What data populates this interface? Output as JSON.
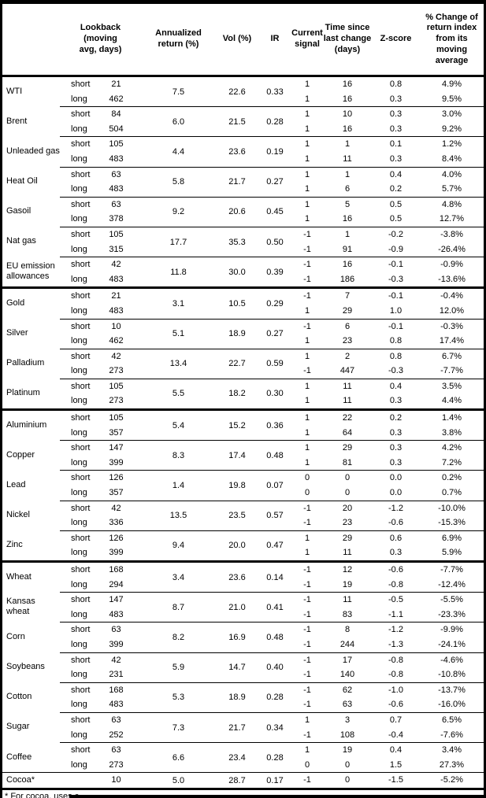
{
  "colors": {
    "text": "#000000",
    "background": "#ffffff",
    "rule": "#000000"
  },
  "header": {
    "lookback": "Lookback\n(moving\navg, days)",
    "annualized": "Annualized\nreturn (%)",
    "vol": "Vol (%)",
    "ir": "IR",
    "signal": "Current\nsignal",
    "time": "Time since\nlast change\n(days)",
    "zscore": "Z-score",
    "pct": "% Change of\nreturn index\nfrom its\nmoving\naverage"
  },
  "footnote": "* For cocoa, uses c",
  "sections": [
    {
      "commodities": [
        {
          "name": "WTI",
          "annualized": "7.5",
          "vol": "22.6",
          "ir": "0.33",
          "legs": [
            {
              "horizon": "short",
              "lookback": "21",
              "signal": "1",
              "time": "16",
              "zscore": "0.8",
              "pct": "4.9%"
            },
            {
              "horizon": "long",
              "lookback": "462",
              "signal": "1",
              "time": "16",
              "zscore": "0.3",
              "pct": "9.5%"
            }
          ]
        },
        {
          "name": "Brent",
          "annualized": "6.0",
          "vol": "21.5",
          "ir": "0.28",
          "legs": [
            {
              "horizon": "short",
              "lookback": "84",
              "signal": "1",
              "time": "10",
              "zscore": "0.3",
              "pct": "3.0%"
            },
            {
              "horizon": "long",
              "lookback": "504",
              "signal": "1",
              "time": "16",
              "zscore": "0.3",
              "pct": "9.2%"
            }
          ]
        },
        {
          "name": "Unleaded gas",
          "annualized": "4.4",
          "vol": "23.6",
          "ir": "0.19",
          "legs": [
            {
              "horizon": "short",
              "lookback": "105",
              "signal": "1",
              "time": "1",
              "zscore": "0.1",
              "pct": "1.2%"
            },
            {
              "horizon": "long",
              "lookback": "483",
              "signal": "1",
              "time": "11",
              "zscore": "0.3",
              "pct": "8.4%"
            }
          ]
        },
        {
          "name": "Heat Oil",
          "annualized": "5.8",
          "vol": "21.7",
          "ir": "0.27",
          "legs": [
            {
              "horizon": "short",
              "lookback": "63",
              "signal": "1",
              "time": "1",
              "zscore": "0.4",
              "pct": "4.0%"
            },
            {
              "horizon": "long",
              "lookback": "483",
              "signal": "1",
              "time": "6",
              "zscore": "0.2",
              "pct": "5.7%"
            }
          ]
        },
        {
          "name": "Gasoil",
          "annualized": "9.2",
          "vol": "20.6",
          "ir": "0.45",
          "legs": [
            {
              "horizon": "short",
              "lookback": "63",
              "signal": "1",
              "time": "5",
              "zscore": "0.5",
              "pct": "4.8%"
            },
            {
              "horizon": "long",
              "lookback": "378",
              "signal": "1",
              "time": "16",
              "zscore": "0.5",
              "pct": "12.7%"
            }
          ]
        },
        {
          "name": "Nat gas",
          "annualized": "17.7",
          "vol": "35.3",
          "ir": "0.50",
          "legs": [
            {
              "horizon": "short",
              "lookback": "105",
              "signal": "-1",
              "time": "1",
              "zscore": "-0.2",
              "pct": "-3.8%"
            },
            {
              "horizon": "long",
              "lookback": "315",
              "signal": "-1",
              "time": "91",
              "zscore": "-0.9",
              "pct": "-26.4%"
            }
          ]
        },
        {
          "name": "EU emission allowances",
          "annualized": "11.8",
          "vol": "30.0",
          "ir": "0.39",
          "legs": [
            {
              "horizon": "short",
              "lookback": "42",
              "signal": "-1",
              "time": "16",
              "zscore": "-0.1",
              "pct": "-0.9%"
            },
            {
              "horizon": "long",
              "lookback": "483",
              "signal": "-1",
              "time": "186",
              "zscore": "-0.3",
              "pct": "-13.6%"
            }
          ]
        }
      ]
    },
    {
      "commodities": [
        {
          "name": "Gold",
          "annualized": "3.1",
          "vol": "10.5",
          "ir": "0.29",
          "legs": [
            {
              "horizon": "short",
              "lookback": "21",
              "signal": "-1",
              "time": "7",
              "zscore": "-0.1",
              "pct": "-0.4%"
            },
            {
              "horizon": "long",
              "lookback": "483",
              "signal": "1",
              "time": "29",
              "zscore": "1.0",
              "pct": "12.0%"
            }
          ]
        },
        {
          "name": "Silver",
          "annualized": "5.1",
          "vol": "18.9",
          "ir": "0.27",
          "legs": [
            {
              "horizon": "short",
              "lookback": "10",
              "signal": "-1",
              "time": "6",
              "zscore": "-0.1",
              "pct": "-0.3%"
            },
            {
              "horizon": "long",
              "lookback": "462",
              "signal": "1",
              "time": "23",
              "zscore": "0.8",
              "pct": "17.4%"
            }
          ]
        },
        {
          "name": "Palladium",
          "annualized": "13.4",
          "vol": "22.7",
          "ir": "0.59",
          "legs": [
            {
              "horizon": "short",
              "lookback": "42",
              "signal": "1",
              "time": "2",
              "zscore": "0.8",
              "pct": "6.7%"
            },
            {
              "horizon": "long",
              "lookback": "273",
              "signal": "-1",
              "time": "447",
              "zscore": "-0.3",
              "pct": "-7.7%"
            }
          ]
        },
        {
          "name": "Platinum",
          "annualized": "5.5",
          "vol": "18.2",
          "ir": "0.30",
          "legs": [
            {
              "horizon": "short",
              "lookback": "105",
              "signal": "1",
              "time": "11",
              "zscore": "0.4",
              "pct": "3.5%"
            },
            {
              "horizon": "long",
              "lookback": "273",
              "signal": "1",
              "time": "11",
              "zscore": "0.3",
              "pct": "4.4%"
            }
          ]
        }
      ]
    },
    {
      "commodities": [
        {
          "name": "Aluminium",
          "annualized": "5.4",
          "vol": "15.2",
          "ir": "0.36",
          "legs": [
            {
              "horizon": "short",
              "lookback": "105",
              "signal": "1",
              "time": "22",
              "zscore": "0.2",
              "pct": "1.4%"
            },
            {
              "horizon": "long",
              "lookback": "357",
              "signal": "1",
              "time": "64",
              "zscore": "0.3",
              "pct": "3.8%"
            }
          ]
        },
        {
          "name": "Copper",
          "annualized": "8.3",
          "vol": "17.4",
          "ir": "0.48",
          "legs": [
            {
              "horizon": "short",
              "lookback": "147",
              "signal": "1",
              "time": "29",
              "zscore": "0.3",
              "pct": "4.2%"
            },
            {
              "horizon": "long",
              "lookback": "399",
              "signal": "1",
              "time": "81",
              "zscore": "0.3",
              "pct": "7.2%"
            }
          ]
        },
        {
          "name": "Lead",
          "annualized": "1.4",
          "vol": "19.8",
          "ir": "0.07",
          "legs": [
            {
              "horizon": "short",
              "lookback": "126",
              "signal": "0",
              "time": "0",
              "zscore": "0.0",
              "pct": "0.2%"
            },
            {
              "horizon": "long",
              "lookback": "357",
              "signal": "0",
              "time": "0",
              "zscore": "0.0",
              "pct": "0.7%"
            }
          ]
        },
        {
          "name": "Nickel",
          "annualized": "13.5",
          "vol": "23.5",
          "ir": "0.57",
          "legs": [
            {
              "horizon": "short",
              "lookback": "42",
              "signal": "-1",
              "time": "20",
              "zscore": "-1.2",
              "pct": "-10.0%"
            },
            {
              "horizon": "long",
              "lookback": "336",
              "signal": "-1",
              "time": "23",
              "zscore": "-0.6",
              "pct": "-15.3%"
            }
          ]
        },
        {
          "name": "Zinc",
          "annualized": "9.4",
          "vol": "20.0",
          "ir": "0.47",
          "legs": [
            {
              "horizon": "short",
              "lookback": "126",
              "signal": "1",
              "time": "29",
              "zscore": "0.6",
              "pct": "6.9%"
            },
            {
              "horizon": "long",
              "lookback": "399",
              "signal": "1",
              "time": "11",
              "zscore": "0.3",
              "pct": "5.9%"
            }
          ]
        }
      ]
    },
    {
      "commodities": [
        {
          "name": "Wheat",
          "annualized": "3.4",
          "vol": "23.6",
          "ir": "0.14",
          "legs": [
            {
              "horizon": "short",
              "lookback": "168",
              "signal": "-1",
              "time": "12",
              "zscore": "-0.6",
              "pct": "-7.7%"
            },
            {
              "horizon": "long",
              "lookback": "294",
              "signal": "-1",
              "time": "19",
              "zscore": "-0.8",
              "pct": "-12.4%"
            }
          ]
        },
        {
          "name": "Kansas wheat",
          "annualized": "8.7",
          "vol": "21.0",
          "ir": "0.41",
          "legs": [
            {
              "horizon": "short",
              "lookback": "147",
              "signal": "-1",
              "time": "11",
              "zscore": "-0.5",
              "pct": "-5.5%"
            },
            {
              "horizon": "long",
              "lookback": "483",
              "signal": "-1",
              "time": "83",
              "zscore": "-1.1",
              "pct": "-23.3%"
            }
          ]
        },
        {
          "name": "Corn",
          "annualized": "8.2",
          "vol": "16.9",
          "ir": "0.48",
          "legs": [
            {
              "horizon": "short",
              "lookback": "63",
              "signal": "-1",
              "time": "8",
              "zscore": "-1.2",
              "pct": "-9.9%"
            },
            {
              "horizon": "long",
              "lookback": "399",
              "signal": "-1",
              "time": "244",
              "zscore": "-1.3",
              "pct": "-24.1%"
            }
          ]
        },
        {
          "name": "Soybeans",
          "annualized": "5.9",
          "vol": "14.7",
          "ir": "0.40",
          "legs": [
            {
              "horizon": "short",
              "lookback": "42",
              "signal": "-1",
              "time": "17",
              "zscore": "-0.8",
              "pct": "-4.6%"
            },
            {
              "horizon": "long",
              "lookback": "231",
              "signal": "-1",
              "time": "140",
              "zscore": "-0.8",
              "pct": "-10.8%"
            }
          ]
        },
        {
          "name": "Cotton",
          "annualized": "5.3",
          "vol": "18.9",
          "ir": "0.28",
          "legs": [
            {
              "horizon": "short",
              "lookback": "168",
              "signal": "-1",
              "time": "62",
              "zscore": "-1.0",
              "pct": "-13.7%"
            },
            {
              "horizon": "long",
              "lookback": "483",
              "signal": "-1",
              "time": "63",
              "zscore": "-0.6",
              "pct": "-16.0%"
            }
          ]
        },
        {
          "name": "Sugar",
          "annualized": "7.3",
          "vol": "21.7",
          "ir": "0.34",
          "legs": [
            {
              "horizon": "short",
              "lookback": "63",
              "signal": "1",
              "time": "3",
              "zscore": "0.7",
              "pct": "6.5%"
            },
            {
              "horizon": "long",
              "lookback": "252",
              "signal": "-1",
              "time": "108",
              "zscore": "-0.4",
              "pct": "-7.6%"
            }
          ]
        },
        {
          "name": "Coffee",
          "annualized": "6.6",
          "vol": "23.4",
          "ir": "0.28",
          "legs": [
            {
              "horizon": "short",
              "lookback": "63",
              "signal": "1",
              "time": "19",
              "zscore": "0.4",
              "pct": "3.4%"
            },
            {
              "horizon": "long",
              "lookback": "273",
              "signal": "0",
              "time": "0",
              "zscore": "1.5",
              "pct": "27.3%"
            }
          ]
        },
        {
          "name": "Cocoa*",
          "annualized": "5.0",
          "vol": "28.7",
          "ir": "0.17",
          "legs": [
            {
              "horizon": "",
              "lookback": "10",
              "signal": "-1",
              "time": "0",
              "zscore": "-1.5",
              "pct": "-5.2%"
            }
          ]
        }
      ]
    }
  ]
}
